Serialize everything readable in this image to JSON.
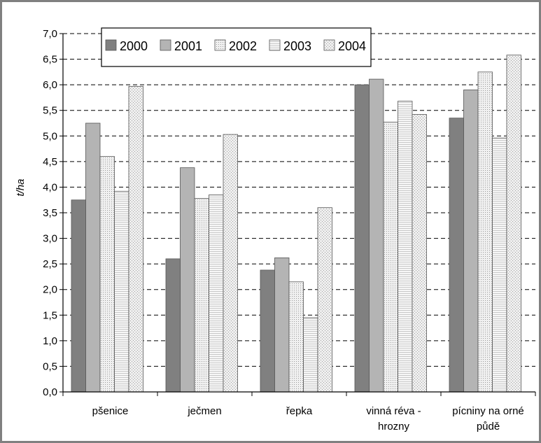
{
  "chart_data": {
    "type": "bar",
    "title": "",
    "xlabel": "",
    "ylabel": "t/ha",
    "ylim": [
      0,
      7
    ],
    "y_ticks": [
      "0,0",
      "0,5",
      "1,0",
      "1,5",
      "2,0",
      "2,5",
      "3,0",
      "3,5",
      "4,0",
      "4,5",
      "5,0",
      "5,5",
      "6,0",
      "6,5",
      "7,0"
    ],
    "categories": [
      [
        "pšenice"
      ],
      [
        "ječmen"
      ],
      [
        "řepka"
      ],
      [
        "vinná réva -",
        "hrozny"
      ],
      [
        "pícniny na orné",
        "půdě"
      ]
    ],
    "series": [
      {
        "name": "2000",
        "color": "#808080",
        "pattern": "solid",
        "values": [
          3.75,
          2.6,
          2.38,
          6.0,
          5.35
        ]
      },
      {
        "name": "2001",
        "color": "#b4b4b4",
        "pattern": "solid",
        "values": [
          5.25,
          4.38,
          2.62,
          6.11,
          5.9
        ]
      },
      {
        "name": "2002",
        "color": "#e8e8e8",
        "pattern": "dotted",
        "values": [
          4.6,
          3.78,
          2.15,
          5.27,
          6.25
        ]
      },
      {
        "name": "2003",
        "color": "#f2f2f2",
        "pattern": "hlines",
        "values": [
          3.92,
          3.85,
          1.45,
          5.68,
          4.96
        ]
      },
      {
        "name": "2004",
        "color": "#e6e6e6",
        "pattern": "dots",
        "values": [
          5.97,
          5.03,
          3.6,
          5.42,
          6.58
        ]
      }
    ],
    "grid": {
      "major_y": true,
      "style": "dashed"
    },
    "legend_position": "top-left, inside plot"
  }
}
